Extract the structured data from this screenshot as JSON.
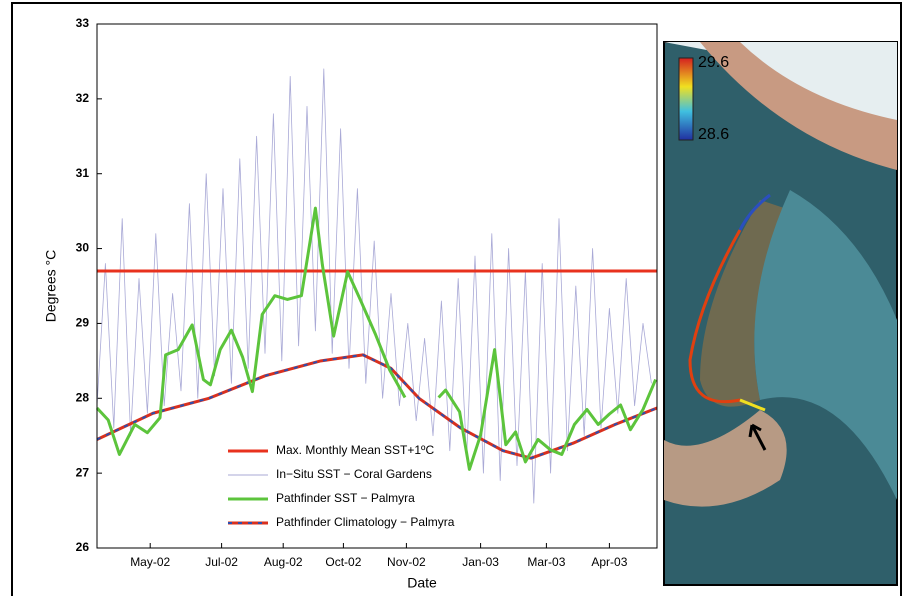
{
  "chart_data": {
    "type": "line",
    "ylabel": "Degrees °C",
    "xlabel": "Date",
    "xlim": [
      0,
      400
    ],
    "ylim": [
      26,
      33
    ],
    "yticks": [
      26,
      27,
      28,
      29,
      30,
      31,
      32,
      33
    ],
    "xticks": [
      {
        "value": 38,
        "label": "May-02"
      },
      {
        "value": 89,
        "label": "Jul-02"
      },
      {
        "value": 133,
        "label": "Aug-02"
      },
      {
        "value": 176,
        "label": "Oct-02"
      },
      {
        "value": 221,
        "label": "Nov-02"
      },
      {
        "value": 274,
        "label": "Jan-03"
      },
      {
        "value": 321,
        "label": "Mar-03"
      },
      {
        "value": 366,
        "label": "Apr-03"
      }
    ],
    "series": [
      {
        "name": "Max. Monthly Mean SST+1ºC",
        "color": "#e8321e",
        "x": [
          0,
          400
        ],
        "values": [
          29.7,
          29.7
        ]
      },
      {
        "name": "In−Situ SST − Coral Gardens",
        "color": "#a9a9d6",
        "x": [
          0,
          6,
          12,
          18,
          24,
          30,
          36,
          42,
          48,
          54,
          60,
          66,
          72,
          78,
          84,
          90,
          96,
          102,
          108,
          114,
          120,
          126,
          132,
          138,
          144,
          150,
          156,
          162,
          168,
          174,
          180,
          186,
          192,
          198,
          204,
          210,
          216,
          222,
          228,
          234,
          240,
          246,
          252,
          258,
          264,
          270,
          276,
          282,
          288,
          294,
          300,
          306,
          312,
          318,
          324,
          330,
          336,
          342,
          348,
          354,
          360,
          366,
          372,
          378,
          384,
          390,
          396
        ],
        "values": [
          27.9,
          29.8,
          27.6,
          30.4,
          27.5,
          29.6,
          27.8,
          30.2,
          27.9,
          29.4,
          28.1,
          30.6,
          28.0,
          31.0,
          28.3,
          30.8,
          28.2,
          31.2,
          28.4,
          31.5,
          28.6,
          31.8,
          28.5,
          32.3,
          28.7,
          31.9,
          28.9,
          32.4,
          28.6,
          31.6,
          28.4,
          30.8,
          28.2,
          30.1,
          28.0,
          29.4,
          27.9,
          29.0,
          27.7,
          28.8,
          27.5,
          29.3,
          27.3,
          29.6,
          27.2,
          29.9,
          27.0,
          30.2,
          26.9,
          30.0,
          27.1,
          29.7,
          26.6,
          29.8,
          27.0,
          30.4,
          27.3,
          29.5,
          27.5,
          30.0,
          27.6,
          29.2,
          27.8,
          29.6,
          27.9,
          29.0,
          28.2
        ]
      },
      {
        "name": "Pathfinder SST − Palmyra",
        "color": "#5cc43c",
        "x": [
          0,
          8,
          16,
          27,
          36,
          45,
          49,
          58,
          68,
          76,
          81,
          88,
          96,
          104,
          111,
          118,
          127,
          136,
          146,
          156,
          161,
          169,
          179,
          188,
          199,
          209,
          220,
          230,
          244,
          249,
          259,
          266,
          274,
          284,
          292,
          299,
          306,
          315,
          324,
          332,
          341,
          350,
          358,
          366,
          374,
          381,
          390,
          399
        ],
        "values": [
          27.87,
          27.71,
          27.25,
          27.65,
          27.54,
          27.74,
          28.58,
          28.65,
          28.98,
          28.25,
          28.18,
          28.65,
          28.91,
          28.55,
          28.09,
          29.12,
          29.37,
          29.32,
          29.37,
          30.54,
          29.78,
          28.83,
          29.69,
          29.32,
          28.85,
          28.38,
          28.01,
          null,
          28.01,
          28.11,
          27.82,
          27.05,
          27.51,
          28.65,
          27.38,
          27.55,
          27.15,
          27.45,
          27.31,
          27.25,
          27.65,
          27.85,
          27.65,
          27.79,
          27.91,
          27.58,
          27.85,
          28.25
        ]
      },
      {
        "name": "Pathfinder Climatology − Palmyra",
        "color": "#d9301e",
        "dash_color": "#2a4fb0",
        "x": [
          0,
          40,
          80,
          120,
          160,
          190,
          210,
          230,
          260,
          290,
          310,
          340,
          370,
          400
        ],
        "values": [
          27.45,
          27.8,
          28.0,
          28.3,
          28.5,
          28.58,
          28.4,
          28.0,
          27.6,
          27.3,
          27.2,
          27.4,
          27.65,
          27.87
        ]
      }
    ],
    "colorbar": {
      "max_label": "29.6",
      "min_label": "28.6"
    }
  }
}
